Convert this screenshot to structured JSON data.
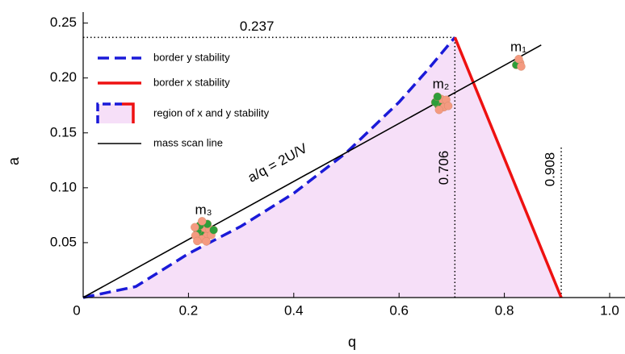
{
  "chart_data": {
    "type": "line",
    "xlabel": "q",
    "ylabel": "a",
    "xlim": [
      0,
      1.0
    ],
    "ylim": [
      0,
      0.26
    ],
    "xticks": [
      0,
      0.2,
      0.4,
      0.6,
      0.8,
      {
        "value": 1.0,
        "label": "1.0"
      }
    ],
    "yticks": [
      0.05,
      {
        "value": 0.1,
        "label": "0.10"
      },
      0.15,
      {
        "value": 0.2,
        "label": "0.20"
      },
      0.25
    ],
    "series": [
      {
        "name": "border y stability",
        "color": "#1a1ad8",
        "dash": true,
        "x": [
          0,
          0.1,
          0.2,
          0.3,
          0.4,
          0.5,
          0.6,
          0.65,
          0.706
        ],
        "values": [
          0,
          0.01,
          0.04,
          0.065,
          0.095,
          0.132,
          0.178,
          0.205,
          0.237
        ]
      },
      {
        "name": "border x stability",
        "color": "#ee1111",
        "dash": false,
        "x": [
          0.706,
          0.908
        ],
        "values": [
          0.237,
          0
        ]
      },
      {
        "name": "mass scan line",
        "color": "#000000",
        "dash": false,
        "x": [
          0,
          0.87
        ],
        "values": [
          0,
          0.23
        ]
      }
    ],
    "region": {
      "name": "region of x and y stability",
      "color": "#f6dff8"
    },
    "a_reference": [
      0.237
    ],
    "q_reference": [
      0.706,
      0.908
    ],
    "line_label": "a/q = 2U/V",
    "ion_labels": [
      "m₁",
      "m₂",
      "m₃"
    ]
  }
}
